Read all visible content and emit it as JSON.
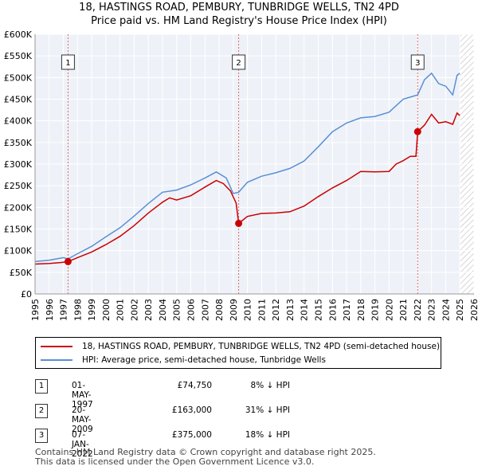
{
  "title_line1": "18, HASTINGS ROAD, PEMBURY, TUNBRIDGE WELLS, TN2 4PD",
  "title_line2": "Price paid vs. HM Land Registry's House Price Index (HPI)",
  "chart_data": {
    "type": "line",
    "ylim": [
      0,
      600000
    ],
    "xlim": [
      1995,
      2026
    ],
    "y_ticks": [
      {
        "value": 0,
        "label": "£0"
      },
      {
        "value": 50000,
        "label": "£50K"
      },
      {
        "value": 100000,
        "label": "£100K"
      },
      {
        "value": 150000,
        "label": "£150K"
      },
      {
        "value": 200000,
        "label": "£200K"
      },
      {
        "value": 250000,
        "label": "£250K"
      },
      {
        "value": 300000,
        "label": "£300K"
      },
      {
        "value": 350000,
        "label": "£350K"
      },
      {
        "value": 400000,
        "label": "£400K"
      },
      {
        "value": 450000,
        "label": "£450K"
      },
      {
        "value": 500000,
        "label": "£500K"
      },
      {
        "value": 550000,
        "label": "£550K"
      },
      {
        "value": 600000,
        "label": "£600K"
      }
    ],
    "x_ticks": [
      "1995",
      "1996",
      "1997",
      "1998",
      "1999",
      "2000",
      "2001",
      "2002",
      "2003",
      "2004",
      "2005",
      "2006",
      "2007",
      "2008",
      "2009",
      "2010",
      "2011",
      "2012",
      "2013",
      "2014",
      "2015",
      "2016",
      "2017",
      "2018",
      "2019",
      "2020",
      "2021",
      "2022",
      "2023",
      "2024",
      "2025",
      "2026"
    ],
    "forecast_start": 2025.0,
    "series": [
      {
        "name": "18, HASTINGS ROAD, PEMBURY, TUNBRIDGE WELLS, TN2 4PD (semi-detached house)",
        "color": "#cc0000",
        "points": [
          [
            1995.0,
            69000
          ],
          [
            1996.0,
            70500
          ],
          [
            1996.8,
            72500
          ],
          [
            1997.33,
            74750
          ],
          [
            1998.0,
            84000
          ],
          [
            1999.0,
            97000
          ],
          [
            2000.0,
            114000
          ],
          [
            2001.0,
            133000
          ],
          [
            2002.0,
            158000
          ],
          [
            2003.0,
            187000
          ],
          [
            2004.0,
            212000
          ],
          [
            2004.5,
            222000
          ],
          [
            2005.0,
            217000
          ],
          [
            2006.0,
            227000
          ],
          [
            2007.0,
            247000
          ],
          [
            2007.8,
            262000
          ],
          [
            2008.3,
            255000
          ],
          [
            2008.8,
            238000
          ],
          [
            2009.2,
            210000
          ],
          [
            2009.38,
            163000
          ],
          [
            2010.0,
            179000
          ],
          [
            2011.0,
            186000
          ],
          [
            2012.0,
            187000
          ],
          [
            2013.0,
            190000
          ],
          [
            2014.0,
            203000
          ],
          [
            2015.0,
            225000
          ],
          [
            2016.0,
            245000
          ],
          [
            2017.0,
            262000
          ],
          [
            2018.0,
            283000
          ],
          [
            2019.0,
            282000
          ],
          [
            2020.0,
            283000
          ],
          [
            2020.5,
            300000
          ],
          [
            2021.0,
            308000
          ],
          [
            2021.5,
            318000
          ],
          [
            2021.9,
            318000
          ],
          [
            2022.02,
            375000
          ],
          [
            2022.5,
            390000
          ],
          [
            2023.0,
            415000
          ],
          [
            2023.5,
            395000
          ],
          [
            2024.0,
            398000
          ],
          [
            2024.5,
            392000
          ],
          [
            2024.8,
            418000
          ],
          [
            2025.0,
            412000
          ]
        ]
      },
      {
        "name": "HPI: Average price, semi-detached house, Tunbridge Wells",
        "color": "#5b8fd4",
        "points": [
          [
            1995.0,
            75000
          ],
          [
            1996.0,
            78000
          ],
          [
            1997.0,
            84000
          ],
          [
            1997.33,
            81000
          ],
          [
            1998.0,
            93000
          ],
          [
            1999.0,
            110000
          ],
          [
            2000.0,
            132000
          ],
          [
            2001.0,
            153000
          ],
          [
            2002.0,
            180000
          ],
          [
            2003.0,
            209000
          ],
          [
            2004.0,
            235000
          ],
          [
            2005.0,
            240000
          ],
          [
            2006.0,
            252000
          ],
          [
            2007.0,
            268000
          ],
          [
            2007.8,
            282000
          ],
          [
            2008.5,
            268000
          ],
          [
            2009.0,
            232000
          ],
          [
            2009.38,
            235000
          ],
          [
            2010.0,
            258000
          ],
          [
            2011.0,
            272000
          ],
          [
            2012.0,
            280000
          ],
          [
            2013.0,
            290000
          ],
          [
            2014.0,
            307000
          ],
          [
            2015.0,
            340000
          ],
          [
            2016.0,
            375000
          ],
          [
            2017.0,
            395000
          ],
          [
            2018.0,
            407000
          ],
          [
            2019.0,
            410000
          ],
          [
            2020.0,
            420000
          ],
          [
            2021.0,
            450000
          ],
          [
            2022.02,
            460000
          ],
          [
            2022.5,
            495000
          ],
          [
            2023.0,
            510000
          ],
          [
            2023.5,
            486000
          ],
          [
            2024.0,
            480000
          ],
          [
            2024.5,
            460000
          ],
          [
            2024.8,
            505000
          ],
          [
            2025.0,
            510000
          ]
        ]
      }
    ],
    "markers": [
      {
        "label": "1",
        "x": 1997.33,
        "y": 74750
      },
      {
        "label": "2",
        "x": 2009.38,
        "y": 163000
      },
      {
        "label": "3",
        "x": 2022.02,
        "y": 375000
      }
    ]
  },
  "legend": {
    "red_label": "18, HASTINGS ROAD, PEMBURY, TUNBRIDGE WELLS, TN2 4PD (semi-detached house)",
    "blue_label": "HPI: Average price, semi-detached house, Tunbridge Wells"
  },
  "transactions": [
    {
      "num": "1",
      "date": "01-MAY-1997",
      "price": "£74,750",
      "hpi": "8% ↓ HPI"
    },
    {
      "num": "2",
      "date": "20-MAY-2009",
      "price": "£163,000",
      "hpi": "31% ↓ HPI"
    },
    {
      "num": "3",
      "date": "07-JAN-2022",
      "price": "£375,000",
      "hpi": "18% ↓ HPI"
    }
  ],
  "footer_line1": "Contains HM Land Registry data © Crown copyright and database right 2025.",
  "footer_line2": "This data is licensed under the Open Government Licence v3.0."
}
